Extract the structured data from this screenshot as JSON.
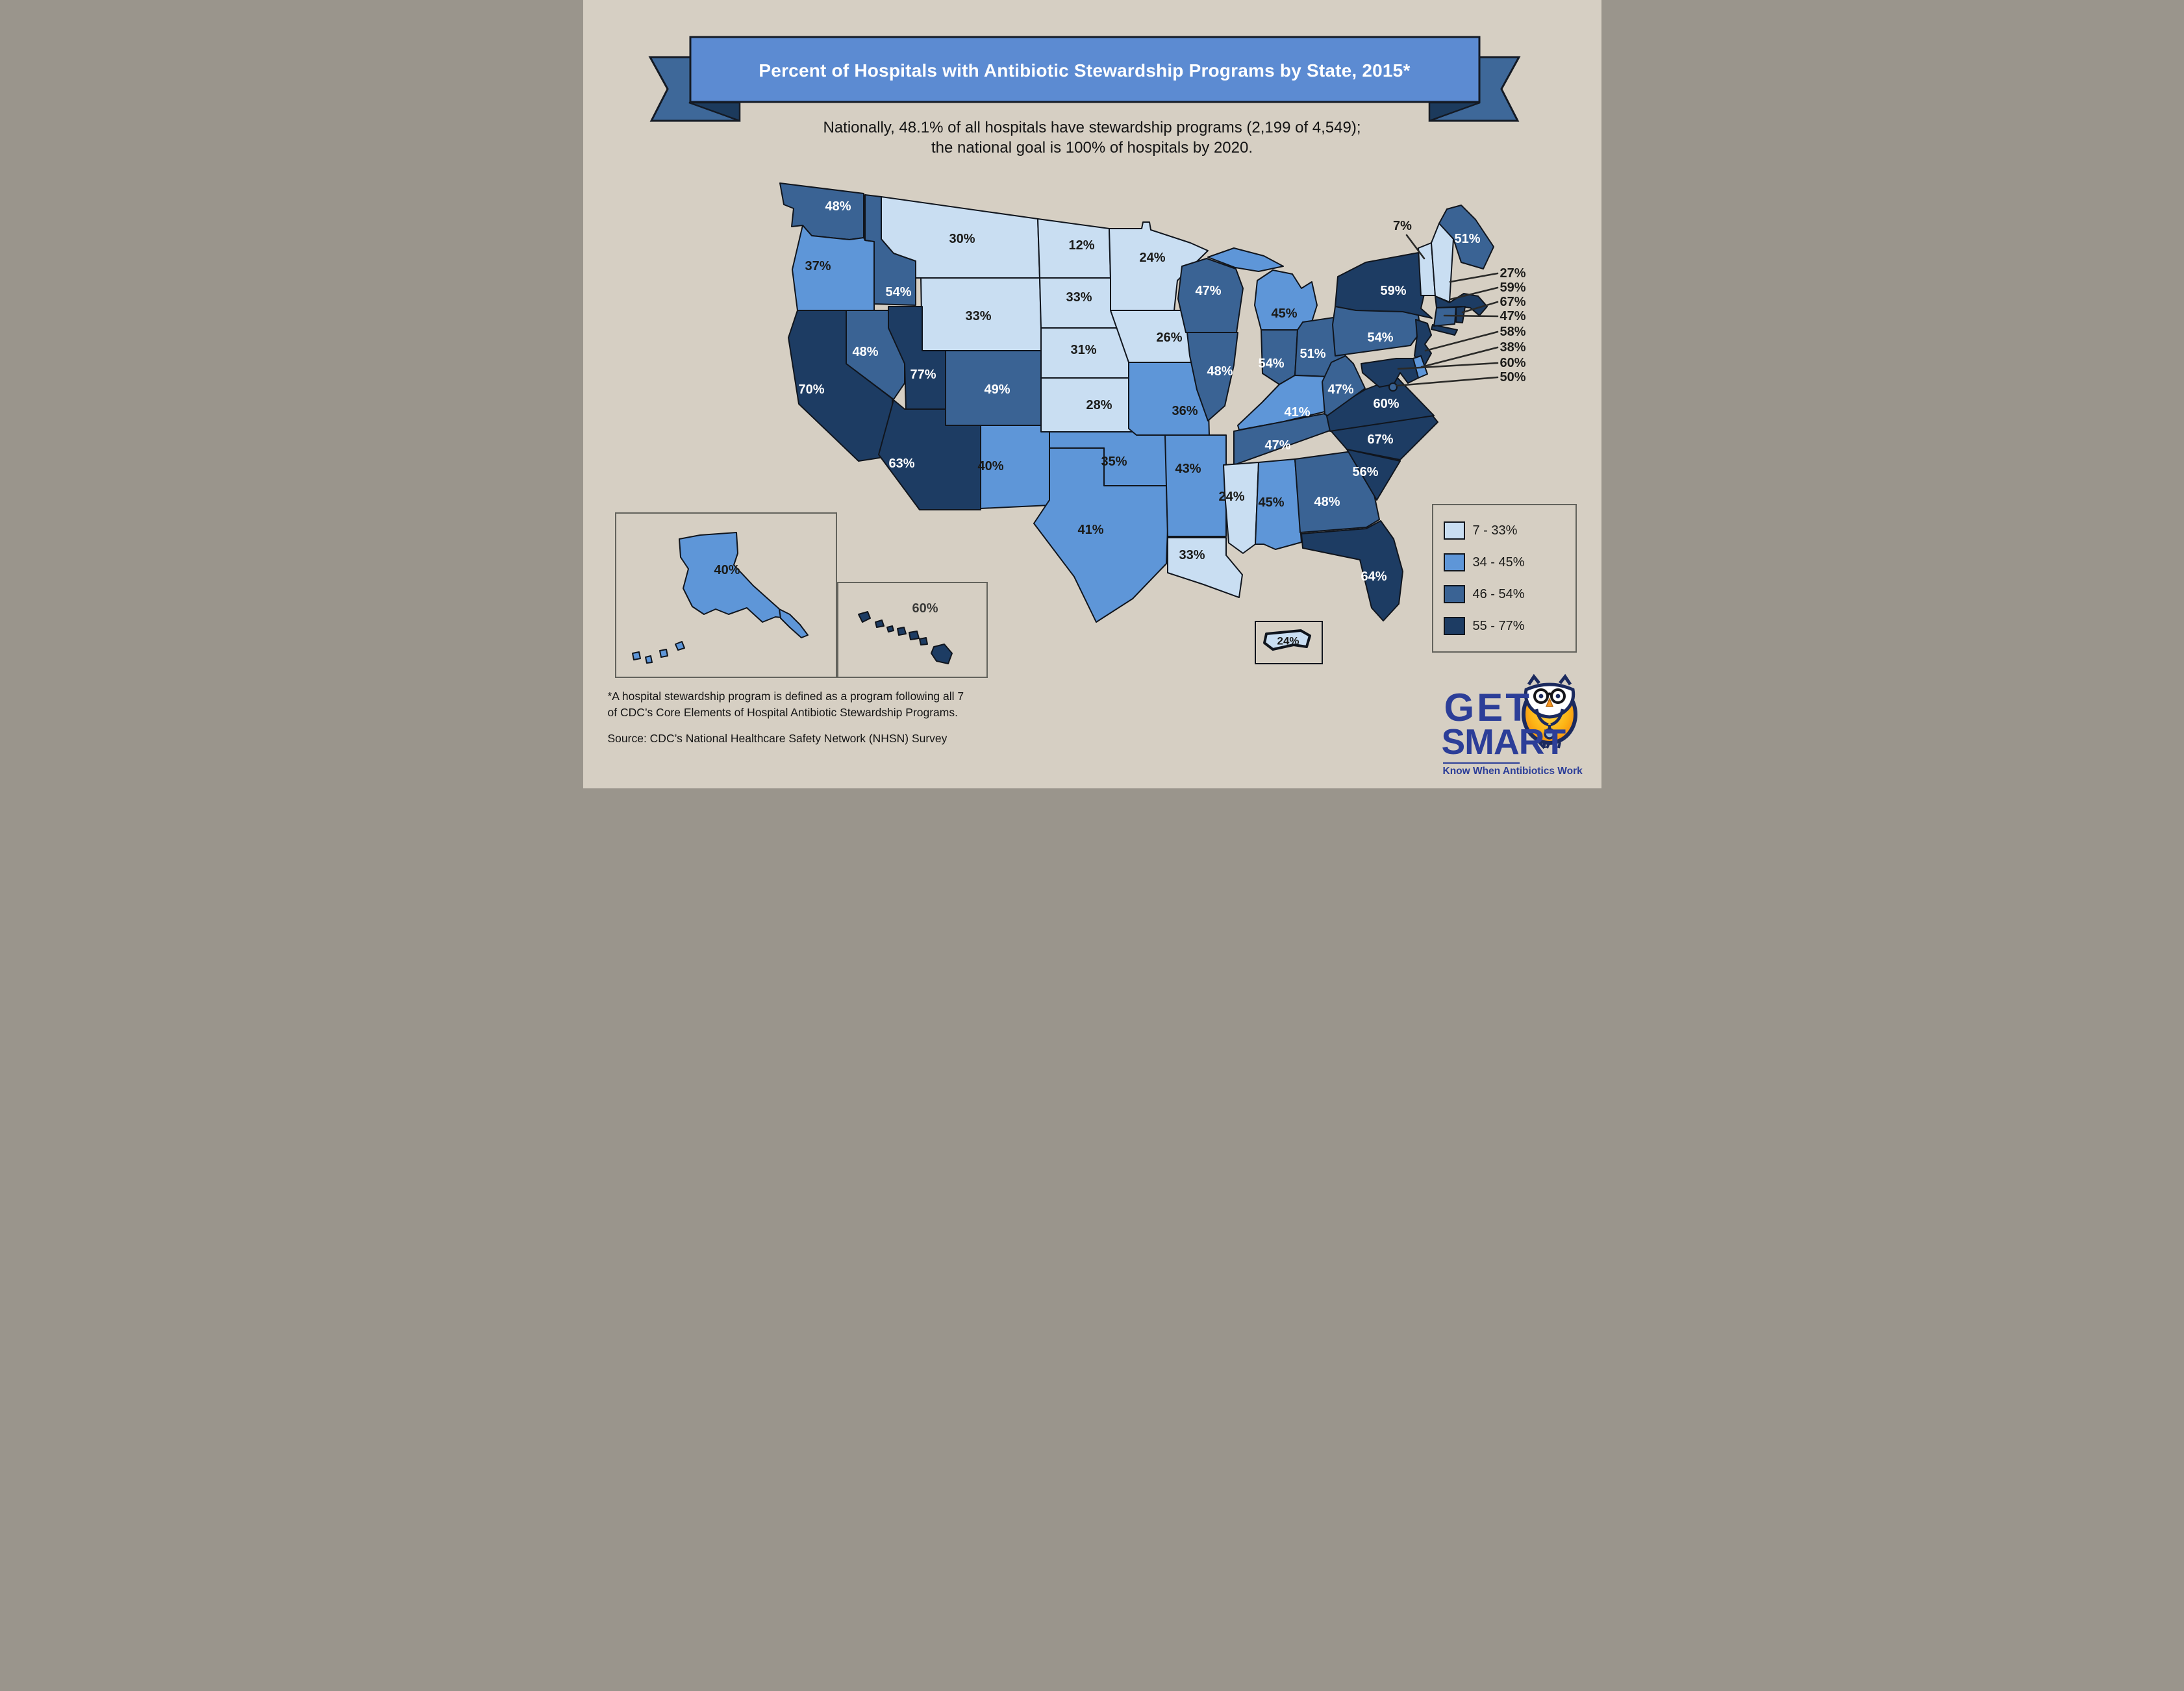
{
  "title": "Percent of Hospitals with Antibiotic Stewardship Programs by State, 2015*",
  "subtitle": {
    "line1": "Nationally, 48.1% of all hospitals have stewardship programs (2,199 of 4,549);",
    "line2": "the national goal is 100% of hospitals by 2020."
  },
  "national_stats": {
    "percent_with_programs": "48.1%",
    "hospitals_with_programs": "2,199",
    "total_hospitals": "4,549",
    "goal_year_text": "100% of hospitals by 2020"
  },
  "chart_data": {
    "type": "choropleth",
    "title": "Percent of Hospitals with Antibiotic Stewardship Programs by State, 2015",
    "unit": "percent of hospitals with an antibiotic stewardship program",
    "classes": [
      {
        "id": "c1",
        "label": "7 - 33%",
        "range": [
          7,
          33
        ],
        "color": "#c9def2",
        "text_color": "#1a1a18"
      },
      {
        "id": "c2",
        "label": "34 - 45%",
        "range": [
          34,
          45
        ],
        "color": "#5e96d8",
        "text_color": "#1a1a18"
      },
      {
        "id": "c3",
        "label": "46 - 54%",
        "range": [
          46,
          54
        ],
        "color": "#3a6394",
        "text_color": "#ffffff"
      },
      {
        "id": "c4",
        "label": "55 - 77%",
        "range": [
          55,
          77
        ],
        "color": "#1d3c63",
        "text_color": "#ffffff"
      }
    ],
    "states": [
      {
        "id": "WA",
        "name": "Washington",
        "value": 48,
        "label": "48%",
        "class": "c3"
      },
      {
        "id": "OR",
        "name": "Oregon",
        "value": 37,
        "label": "37%",
        "class": "c2"
      },
      {
        "id": "CA",
        "name": "California",
        "value": 70,
        "label": "70%",
        "class": "c4"
      },
      {
        "id": "NV",
        "name": "Nevada",
        "value": 48,
        "label": "48%",
        "class": "c3"
      },
      {
        "id": "ID",
        "name": "Idaho",
        "value": 54,
        "label": "54%",
        "class": "c3"
      },
      {
        "id": "MT",
        "name": "Montana",
        "value": 30,
        "label": "30%",
        "class": "c1"
      },
      {
        "id": "WY",
        "name": "Wyoming",
        "value": 33,
        "label": "33%",
        "class": "c1"
      },
      {
        "id": "UT",
        "name": "Utah",
        "value": 77,
        "label": "77%",
        "class": "c4"
      },
      {
        "id": "CO",
        "name": "Colorado",
        "value": 49,
        "label": "49%",
        "class": "c3"
      },
      {
        "id": "AZ",
        "name": "Arizona",
        "value": 63,
        "label": "63%",
        "class": "c4"
      },
      {
        "id": "NM",
        "name": "New Mexico",
        "value": 40,
        "label": "40%",
        "class": "c2"
      },
      {
        "id": "ND",
        "name": "North Dakota",
        "value": 12,
        "label": "12%",
        "class": "c1"
      },
      {
        "id": "SD",
        "name": "South Dakota",
        "value": 33,
        "label": "33%",
        "class": "c1"
      },
      {
        "id": "NE",
        "name": "Nebraska",
        "value": 31,
        "label": "31%",
        "class": "c1"
      },
      {
        "id": "KS",
        "name": "Kansas",
        "value": 28,
        "label": "28%",
        "class": "c1"
      },
      {
        "id": "OK",
        "name": "Oklahoma",
        "value": 35,
        "label": "35%",
        "class": "c2"
      },
      {
        "id": "TX",
        "name": "Texas",
        "value": 41,
        "label": "41%",
        "class": "c2"
      },
      {
        "id": "MN",
        "name": "Minnesota",
        "value": 24,
        "label": "24%",
        "class": "c1"
      },
      {
        "id": "IA",
        "name": "Iowa",
        "value": 26,
        "label": "26%",
        "class": "c1"
      },
      {
        "id": "MO",
        "name": "Missouri",
        "value": 36,
        "label": "36%",
        "class": "c2"
      },
      {
        "id": "AR",
        "name": "Arkansas",
        "value": 43,
        "label": "43%",
        "class": "c2"
      },
      {
        "id": "LA",
        "name": "Louisiana",
        "value": 33,
        "label": "33%",
        "class": "c1"
      },
      {
        "id": "WI",
        "name": "Wisconsin",
        "value": 47,
        "label": "47%",
        "class": "c3"
      },
      {
        "id": "IL",
        "name": "Illinois",
        "value": 48,
        "label": "48%",
        "class": "c3"
      },
      {
        "id": "MI",
        "name": "Michigan",
        "value": 45,
        "label": "45%",
        "class": "c2"
      },
      {
        "id": "IN",
        "name": "Indiana",
        "value": 54,
        "label": "54%",
        "class": "c3"
      },
      {
        "id": "OH",
        "name": "Ohio",
        "value": 51,
        "label": "51%",
        "class": "c3"
      },
      {
        "id": "KY",
        "name": "Kentucky",
        "value": 41,
        "label": "41%",
        "class": "c2",
        "label_color": "#ffffff"
      },
      {
        "id": "TN",
        "name": "Tennessee",
        "value": 47,
        "label": "47%",
        "class": "c3"
      },
      {
        "id": "MS",
        "name": "Mississippi",
        "value": 24,
        "label": "24%",
        "class": "c1"
      },
      {
        "id": "AL",
        "name": "Alabama",
        "value": 45,
        "label": "45%",
        "class": "c2"
      },
      {
        "id": "GA",
        "name": "Georgia",
        "value": 48,
        "label": "48%",
        "class": "c3"
      },
      {
        "id": "FL",
        "name": "Florida",
        "value": 64,
        "label": "64%",
        "class": "c4"
      },
      {
        "id": "SC",
        "name": "South Carolina",
        "value": 56,
        "label": "56%",
        "class": "c4"
      },
      {
        "id": "NC",
        "name": "North Carolina",
        "value": 67,
        "label": "67%",
        "class": "c4"
      },
      {
        "id": "VA",
        "name": "Virginia",
        "value": 60,
        "label": "60%",
        "class": "c4"
      },
      {
        "id": "WV",
        "name": "West Virginia",
        "value": 47,
        "label": "47%",
        "class": "c3"
      },
      {
        "id": "PA",
        "name": "Pennsylvania",
        "value": 54,
        "label": "54%",
        "class": "c3"
      },
      {
        "id": "NY",
        "name": "New York",
        "value": 59,
        "label": "59%",
        "class": "c4"
      },
      {
        "id": "ME",
        "name": "Maine",
        "value": 51,
        "label": "51%",
        "class": "c3"
      },
      {
        "id": "VT",
        "name": "Vermont",
        "value": 7,
        "label": "7%",
        "class": "c1"
      },
      {
        "id": "NH",
        "name": "New Hampshire",
        "value": 27,
        "label": "27%",
        "class": "c1"
      },
      {
        "id": "MA",
        "name": "Massachusetts",
        "value": 59,
        "label": "59%",
        "class": "c4"
      },
      {
        "id": "RI",
        "name": "Rhode Island",
        "value": 67,
        "label": "67%",
        "class": "c4"
      },
      {
        "id": "CT",
        "name": "Connecticut",
        "value": 47,
        "label": "47%",
        "class": "c3"
      },
      {
        "id": "NJ",
        "name": "New Jersey",
        "value": 58,
        "label": "58%",
        "class": "c4"
      },
      {
        "id": "DE",
        "name": "Delaware",
        "value": 38,
        "label": "38%",
        "class": "c2"
      },
      {
        "id": "MD",
        "name": "Maryland",
        "value": 60,
        "label": "60%",
        "class": "c4"
      },
      {
        "id": "DC",
        "name": "District of Columbia",
        "value": 50,
        "label": "50%",
        "class": "c3"
      },
      {
        "id": "AK",
        "name": "Alaska",
        "value": 40,
        "label": "40%",
        "class": "c2"
      },
      {
        "id": "HI",
        "name": "Hawaii",
        "value": 60,
        "label": "60%",
        "class": "c4",
        "label_color": "#3a3a38"
      },
      {
        "id": "PR",
        "name": "Puerto Rico",
        "value": 24,
        "label": "24%",
        "class": "c1"
      }
    ]
  },
  "callouts": {
    "vermont": {
      "state": "VT",
      "label": "7%"
    },
    "east_column": [
      {
        "state": "NH",
        "label": "27%"
      },
      {
        "state": "MA",
        "label": "59%"
      },
      {
        "state": "RI",
        "label": "67%"
      },
      {
        "state": "CT",
        "label": "47%"
      },
      {
        "state": "NJ",
        "label": "58%"
      },
      {
        "state": "DE",
        "label": "38%"
      },
      {
        "state": "MD",
        "label": "60%"
      },
      {
        "state": "DC",
        "label": "50%"
      }
    ]
  },
  "legend": {
    "items": [
      {
        "label": "7 - 33%",
        "class": "c1"
      },
      {
        "label": "34 - 45%",
        "class": "c2"
      },
      {
        "label": "46 - 54%",
        "class": "c3"
      },
      {
        "label": "55 - 77%",
        "class": "c4"
      }
    ]
  },
  "footnote": {
    "line1": "*A hospital stewardship program is defined as a program following all 7",
    "line2": "of CDC’s Core Elements of Hospital Antibiotic Stewardship Programs."
  },
  "source": "Source: CDC’s National Healthcare Safety Network (NHSN) Survey",
  "logo": {
    "word1": "GET",
    "word2": "SMART",
    "tagline": "Know When Antibiotics Work",
    "color": "#2c3e98"
  },
  "colors": {
    "background": "#d6cfc3",
    "banner": "#5c8bd2",
    "ribbon_end": "#3e6899",
    "ribbon_fold": "#1c3a5c",
    "state_border": "#10151d",
    "leader_line": "#2a2a28"
  }
}
